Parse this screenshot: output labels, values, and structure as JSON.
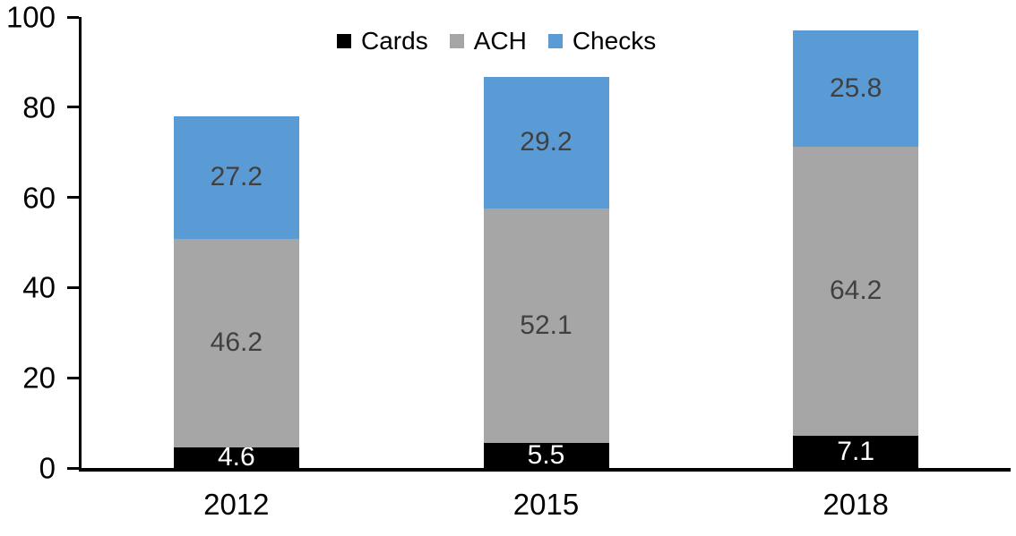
{
  "chart_data": {
    "type": "bar",
    "stacked": true,
    "title": "",
    "categories": [
      "2012",
      "2015",
      "2018"
    ],
    "series": [
      {
        "name": "Cards",
        "color": "#000000",
        "label_color": "#ffffff",
        "values": [
          4.6,
          5.5,
          7.1
        ]
      },
      {
        "name": "ACH",
        "color": "#a6a6a6",
        "label_color": "#404040",
        "values": [
          46.2,
          52.1,
          64.2
        ]
      },
      {
        "name": "Checks",
        "color": "#5b9bd5",
        "label_color": "#404040",
        "values": [
          27.2,
          29.2,
          25.8
        ]
      }
    ],
    "segment_labels": [
      [
        "4.6",
        "5.5",
        "7.1"
      ],
      [
        "46.2",
        "52.1",
        "64.2"
      ],
      [
        "27.2",
        "29.2",
        "25.8"
      ]
    ],
    "xlabel": "",
    "ylabel": "",
    "ylim": [
      0,
      100
    ],
    "yticks": [
      0,
      20,
      40,
      60,
      80,
      100
    ],
    "grid": false,
    "legend_position": "top",
    "axis_color": "#000000"
  }
}
